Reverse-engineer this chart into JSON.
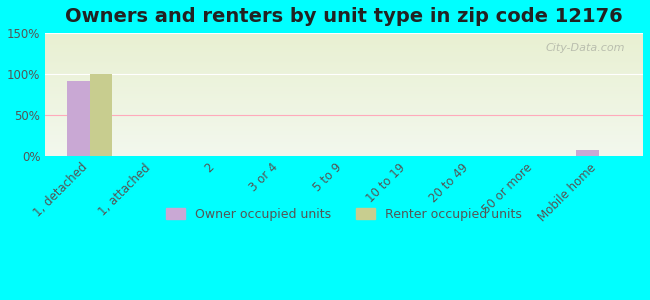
{
  "title": "Owners and renters by unit type in zip code 12176",
  "categories": [
    "1, detached",
    "1, attached",
    "2",
    "3 or 4",
    "5 to 9",
    "10 to 19",
    "20 to 49",
    "50 or more",
    "Mobile home"
  ],
  "owner_values": [
    91,
    0,
    0,
    0,
    0,
    0,
    0,
    0,
    8
  ],
  "renter_values": [
    100,
    0,
    0,
    0,
    0,
    0,
    0,
    0,
    0
  ],
  "owner_color": "#c9a8d4",
  "renter_color": "#c8cd8f",
  "background_color": "#00ffff",
  "plot_bg_top": "#e8f0d0",
  "plot_bg_bottom": "#f5f8ec",
  "ylim": [
    0,
    150
  ],
  "yticks": [
    0,
    50,
    100,
    150
  ],
  "ytick_labels": [
    "0%",
    "50%",
    "100%",
    "150%"
  ],
  "bar_width": 0.35,
  "title_fontsize": 14,
  "tick_fontsize": 8.5,
  "legend_fontsize": 9,
  "watermark": "City-Data.com"
}
